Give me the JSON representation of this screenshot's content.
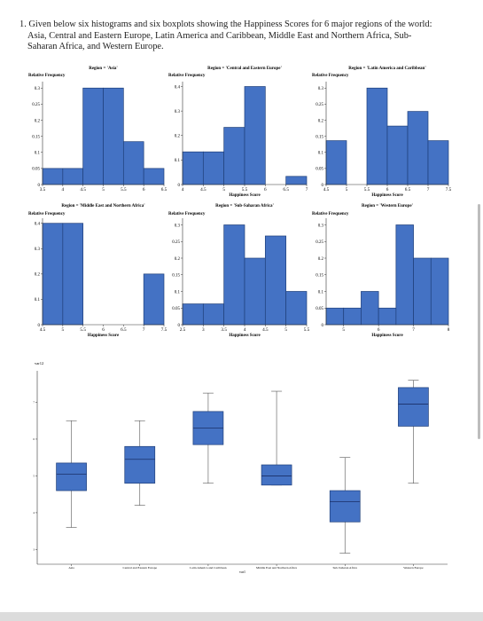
{
  "question": {
    "lines": [
      "1. Given below six histograms and six boxplots showing the Happiness Scores for 6 major regions of the world:",
      "Asia, Central and Eastern Europe, Latin America and Caribbean, Middle East and Northern Africa, Sub-",
      "Saharan Africa, and Western Europe."
    ]
  },
  "colors": {
    "bar_fill": "#4472c4",
    "bar_stroke": "#1f3f7a",
    "axis": "#333333",
    "whisker": "#555555",
    "median": "#1a2f66"
  },
  "chart_data": [
    {
      "type": "bar",
      "kind": "histogram",
      "title": "Region = 'Asia'",
      "ylabel": "Relative Frequency",
      "xlabel": "",
      "bin_edges": [
        3.5,
        4,
        4.5,
        5,
        5.5,
        6,
        6.5
      ],
      "values": [
        0.05,
        0.05,
        0.3,
        0.3,
        0.1333,
        0.05
      ],
      "xticks": [
        3.5,
        4,
        4.5,
        5,
        5.5,
        6,
        6.5
      ],
      "xlim": [
        3.5,
        6.5
      ],
      "yticks": [
        0,
        0.05,
        0.1,
        0.15,
        0.2,
        0.25,
        0.3
      ],
      "ytick_labels": [
        "0",
        "0.05",
        "0.1",
        "0.15",
        "0.2",
        "0.25",
        "0.3"
      ],
      "ylim": [
        0,
        0.32
      ]
    },
    {
      "type": "bar",
      "kind": "histogram",
      "title": "Region = 'Central and Eastern Europe'",
      "ylabel": "Relative Frequency",
      "xlabel": "Happiness Score",
      "bin_edges": [
        4,
        4.5,
        5,
        5.5,
        6,
        6.5,
        7
      ],
      "values": [
        0.1333,
        0.1333,
        0.2333,
        0.4,
        0,
        0.0333
      ],
      "xticks": [
        4,
        4.5,
        5,
        5.5,
        6,
        6.5,
        7
      ],
      "xlim": [
        4,
        7
      ],
      "yticks": [
        0,
        0.1,
        0.2,
        0.3,
        0.4
      ],
      "ytick_labels": [
        "0",
        "0.1",
        "0.2",
        "0.3",
        "0.4"
      ],
      "ylim": [
        0,
        0.42
      ]
    },
    {
      "type": "bar",
      "kind": "histogram",
      "title": "Region = 'Latin America and Caribbean'",
      "ylabel": "Relative Frequency",
      "xlabel": "Happiness Score",
      "bin_edges": [
        4.5,
        5,
        5.5,
        6,
        6.5,
        7,
        7.5
      ],
      "values": [
        0.1364,
        0,
        0.3,
        0.1818,
        0.2273,
        0.1364
      ],
      "xticks": [
        4.5,
        5,
        5.5,
        6,
        6.5,
        7,
        7.5
      ],
      "xlim": [
        4.5,
        7.5
      ],
      "yticks": [
        0,
        0.05,
        0.1,
        0.15,
        0.2,
        0.25,
        0.3
      ],
      "ytick_labels": [
        "0",
        "0.05",
        "0.1",
        "0.15",
        "0.2",
        "0.25",
        "0.3"
      ],
      "ylim": [
        0,
        0.32
      ]
    },
    {
      "type": "bar",
      "kind": "histogram",
      "title": "Region = 'Middle East and Northern Africa'",
      "ylabel": "Relative Frequency",
      "xlabel": "Happiness Score",
      "bin_edges": [
        4.5,
        5,
        5.5,
        6,
        6.5,
        7,
        7.5
      ],
      "values": [
        0.4,
        0.4,
        0,
        0,
        0,
        0.2
      ],
      "xticks": [
        4.5,
        5,
        5.5,
        6,
        6.5,
        7,
        7.5
      ],
      "xlim": [
        4.5,
        7.5
      ],
      "yticks": [
        0,
        0.1,
        0.2,
        0.3,
        0.4
      ],
      "ytick_labels": [
        "0",
        "0.1",
        "0.2",
        "0.3",
        "0.4"
      ],
      "ylim": [
        0,
        0.42
      ]
    },
    {
      "type": "bar",
      "kind": "histogram",
      "title": "Region = 'Sub-Saharan Africa'",
      "ylabel": "Relative Frequency",
      "xlabel": "Happiness Score",
      "bin_edges": [
        2.5,
        3,
        3.5,
        4,
        4.5,
        5,
        5.5
      ],
      "values": [
        0.0625,
        0.0625,
        0.3,
        0.2,
        0.2667,
        0.1
      ],
      "xticks": [
        2.5,
        3,
        3.5,
        4,
        4.5,
        5,
        5.5
      ],
      "xlim": [
        2.5,
        5.5
      ],
      "yticks": [
        0,
        0.05,
        0.1,
        0.15,
        0.2,
        0.25,
        0.3
      ],
      "ytick_labels": [
        "0",
        "0.05",
        "0.1",
        "0.15",
        "0.2",
        "0.25",
        "0.3"
      ],
      "ylim": [
        0,
        0.32
      ]
    },
    {
      "type": "bar",
      "kind": "histogram",
      "title": "Region = 'Western Europe'",
      "ylabel": "Relative Frequency",
      "xlabel": "Happiness Score",
      "bin_edges": [
        4.5,
        5,
        5.5,
        6,
        6.5,
        7,
        7.5,
        8
      ],
      "values": [
        0.05,
        0.05,
        0.1,
        0.05,
        0.3,
        0.2,
        0.2
      ],
      "xticks": [
        5,
        6,
        7,
        8
      ],
      "xlim": [
        4.5,
        8
      ],
      "yticks": [
        0,
        0.05,
        0.1,
        0.15,
        0.2,
        0.25,
        0.3
      ],
      "ytick_labels": [
        "0",
        "0.05",
        "0.1",
        "0.15",
        "0.2",
        "0.25",
        "0.3"
      ],
      "ylim": [
        0,
        0.32
      ]
    },
    {
      "type": "boxplot",
      "ylabel": "var12",
      "xlabel": "var1",
      "ylim": [
        2.6,
        8.0
      ],
      "yticks": [
        3,
        4,
        5,
        6,
        7
      ],
      "ytick_labels": [
        "3",
        "4",
        "5",
        "6",
        "7"
      ],
      "categories": [
        "Asia",
        "Central and Eastern Europe",
        "Latin America and Caribbean",
        "Middle East and Northern Africa",
        "Sub-Saharan Africa",
        "Western Europe"
      ],
      "boxes": [
        {
          "min": 3.6,
          "q1": 4.6,
          "median": 5.05,
          "q3": 5.35,
          "max": 6.5
        },
        {
          "min": 4.2,
          "q1": 4.8,
          "median": 5.45,
          "q3": 5.8,
          "max": 6.5
        },
        {
          "min": 4.8,
          "q1": 5.85,
          "median": 6.3,
          "q3": 6.75,
          "max": 7.25
        },
        {
          "min": 4.75,
          "q1": 4.75,
          "median": 5.0,
          "q3": 5.3,
          "max": 7.3
        },
        {
          "min": 2.9,
          "q1": 3.75,
          "median": 4.3,
          "q3": 4.6,
          "max": 5.5
        },
        {
          "min": 4.8,
          "q1": 6.35,
          "median": 6.95,
          "q3": 7.4,
          "max": 7.6
        }
      ]
    }
  ]
}
